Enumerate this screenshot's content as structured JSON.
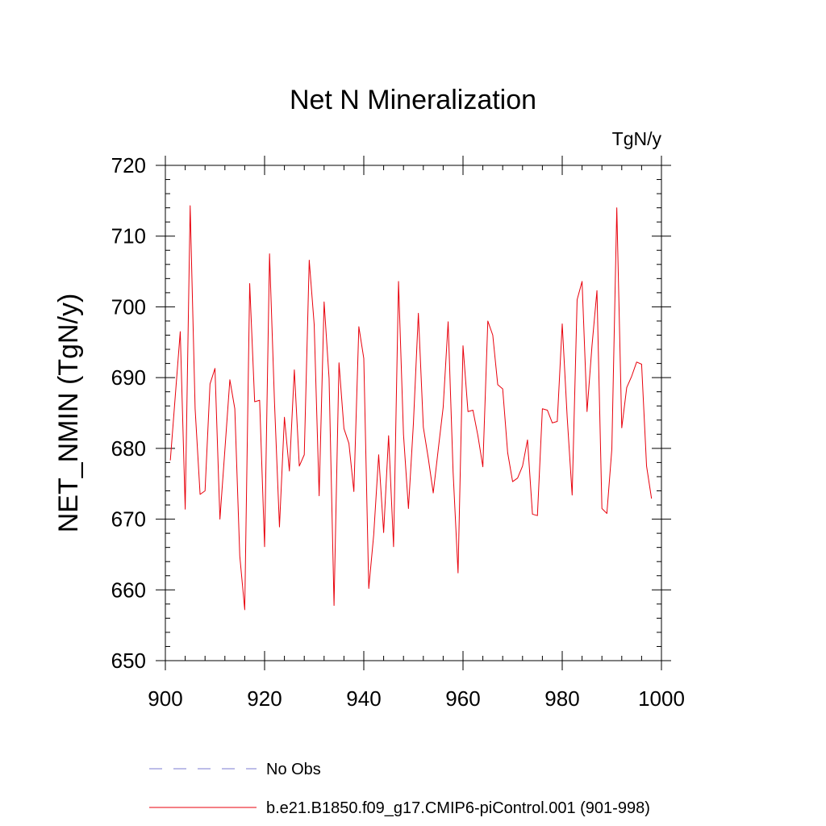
{
  "chart_data": {
    "type": "line",
    "title": "Net N Mineralization",
    "units_label": "TgN/y",
    "xlabel": "",
    "ylabel": "NET_NMIN  (TgN/y)",
    "xlim": [
      900,
      1000
    ],
    "ylim": [
      650,
      720
    ],
    "xticks": [
      900,
      920,
      940,
      960,
      980,
      1000
    ],
    "yticks": [
      650,
      660,
      670,
      680,
      690,
      700,
      710,
      720
    ],
    "grid": false,
    "legend_position": "bottom-left",
    "series": [
      {
        "name": "No Obs",
        "color": "#7b7bd1",
        "style": "dashed",
        "x": [],
        "y": []
      },
      {
        "name": "b.e21.B1850.f09_g17.CMIP6-piControl.001 (901-998)",
        "color": "#e8000b",
        "style": "solid",
        "x": [
          901,
          902,
          903,
          904,
          905,
          906,
          907,
          908,
          909,
          910,
          911,
          912,
          913,
          914,
          915,
          916,
          917,
          918,
          919,
          920,
          921,
          922,
          923,
          924,
          925,
          926,
          927,
          928,
          929,
          930,
          931,
          932,
          933,
          934,
          935,
          936,
          937,
          938,
          939,
          940,
          941,
          942,
          943,
          944,
          945,
          946,
          947,
          948,
          949,
          950,
          951,
          952,
          953,
          954,
          955,
          956,
          957,
          958,
          959,
          960,
          961,
          962,
          963,
          964,
          965,
          966,
          967,
          968,
          969,
          970,
          971,
          972,
          973,
          974,
          975,
          976,
          977,
          978,
          979,
          980,
          981,
          982,
          983,
          984,
          985,
          986,
          987,
          988,
          989,
          990,
          991,
          992,
          993,
          994,
          995,
          996,
          997,
          998
        ],
        "y": [
          678.3,
          687.4,
          696.5,
          671.4,
          714.3,
          685.6,
          673.5,
          674.0,
          689.1,
          691.3,
          670.0,
          679.8,
          689.7,
          685.6,
          664.8,
          657.2,
          703.3,
          686.6,
          686.8,
          666.1,
          707.5,
          686.5,
          668.9,
          684.4,
          676.8,
          691.1,
          677.5,
          679.1,
          706.6,
          697.5,
          673.3,
          700.7,
          689.9,
          657.8,
          692.1,
          682.8,
          680.7,
          673.9,
          697.2,
          692.7,
          660.2,
          667.8,
          679.1,
          668.1,
          681.8,
          666.1,
          703.6,
          682.0,
          671.5,
          683.5,
          699.1,
          683.0,
          678.6,
          673.7,
          679.8,
          685.8,
          697.9,
          676.7,
          662.4,
          694.5,
          685.2,
          685.4,
          681.8,
          677.4,
          698.0,
          696.0,
          689.0,
          688.4,
          679.4,
          675.3,
          675.8,
          677.5,
          681.2,
          670.7,
          670.5,
          685.6,
          685.4,
          683.6,
          683.8,
          697.6,
          684.4,
          673.4,
          701.0,
          703.6,
          685.2,
          694.5,
          702.3,
          671.5,
          670.8,
          679.9,
          714.0,
          682.9,
          688.6,
          690.2,
          692.2,
          691.9,
          677.5,
          672.9
        ]
      }
    ]
  }
}
